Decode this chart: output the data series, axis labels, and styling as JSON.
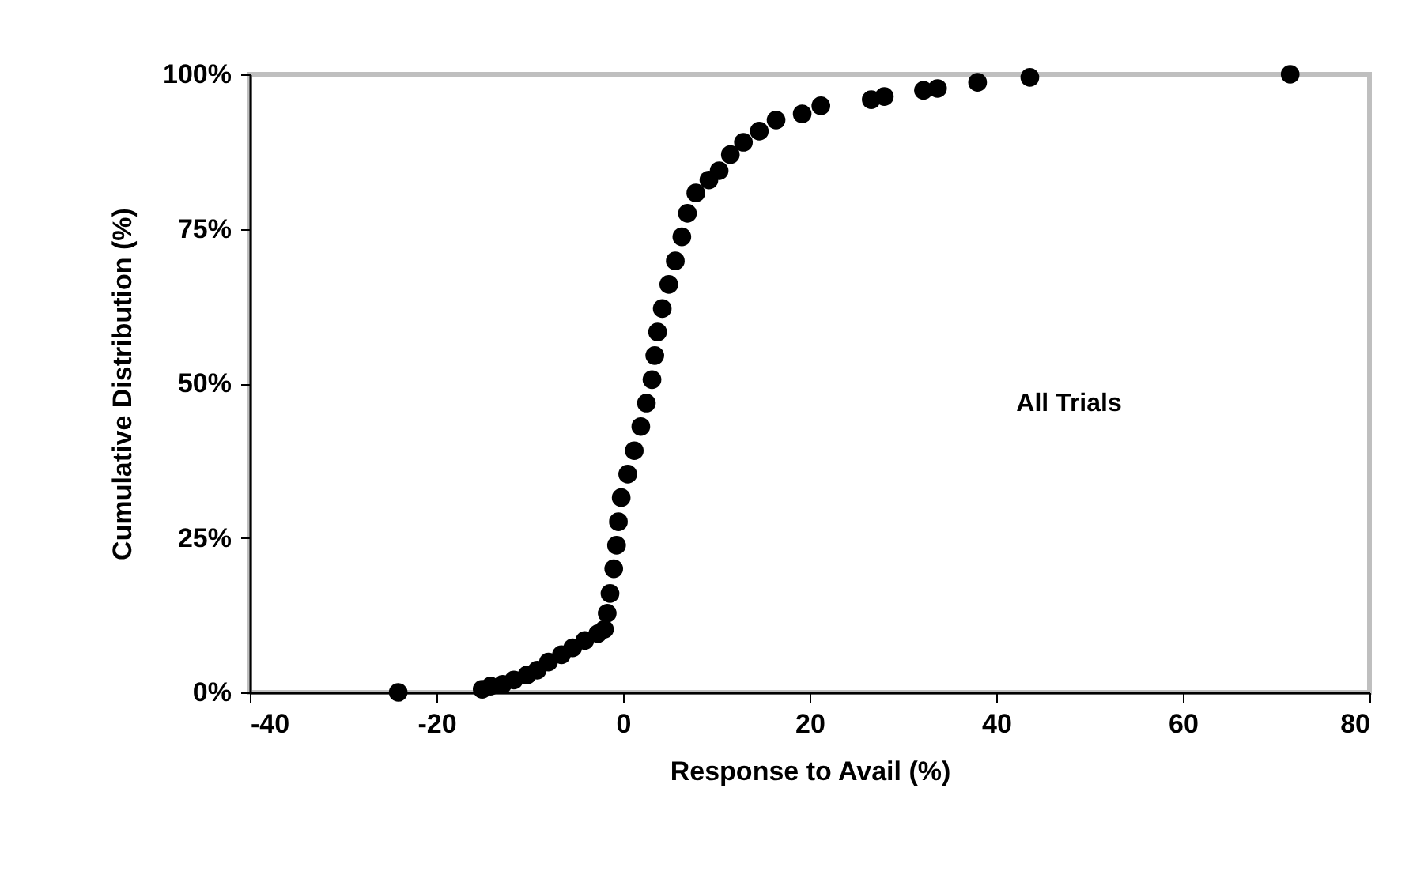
{
  "chart_data": {
    "type": "scatter",
    "xlabel": "Response to Avail (%)",
    "ylabel": "Cumulative Distribution (%)",
    "annotations": [
      "All Trials"
    ],
    "x": [
      -24.1,
      -15.1,
      -14.2,
      -12.9,
      -11.7,
      -10.3,
      -9.2,
      -8.0,
      -6.6,
      -5.4,
      -4.1,
      -2.7,
      -2.0,
      -1.7,
      -1.4,
      -1.0,
      -0.7,
      -0.5,
      -0.2,
      0.5,
      1.2,
      1.9,
      2.5,
      3.1,
      3.4,
      3.7,
      4.2,
      4.9,
      5.6,
      6.3,
      6.9,
      7.8,
      9.2,
      10.3,
      11.5,
      12.9,
      14.6,
      16.4,
      19.2,
      21.2,
      26.6,
      28.0,
      32.2,
      33.7,
      38.0,
      43.6,
      71.5
    ],
    "series": [
      {
        "color": "#000000",
        "values": [
          0,
          0.5,
          1,
          1.3,
          2,
          2.8,
          3.6,
          4.9,
          6.1,
          7.2,
          8.4,
          9.5,
          10.2,
          12.8,
          16,
          20,
          23.8,
          27.6,
          31.5,
          35.3,
          39.1,
          43,
          46.8,
          50.6,
          54.5,
          58.3,
          62.1,
          66,
          69.8,
          73.7,
          77.5,
          80.8,
          82.9,
          84.4,
          87,
          89,
          90.8,
          92.6,
          93.6,
          94.9,
          95.9,
          96.4,
          97.4,
          97.7,
          98.7,
          99.5,
          100
        ]
      }
    ],
    "marker": "circle",
    "grid": false,
    "legend": false,
    "xlim": [
      -40,
      80
    ],
    "xticks": [
      -40,
      -20,
      0,
      20,
      40,
      60,
      80
    ],
    "ylim": [
      0,
      100
    ],
    "yticks": [
      {
        "value": 0,
        "label": "0%"
      },
      {
        "value": 25,
        "label": "25%"
      },
      {
        "value": 50,
        "label": "50%"
      },
      {
        "value": 75,
        "label": "75%"
      },
      {
        "value": 100,
        "label": "100%"
      }
    ]
  }
}
